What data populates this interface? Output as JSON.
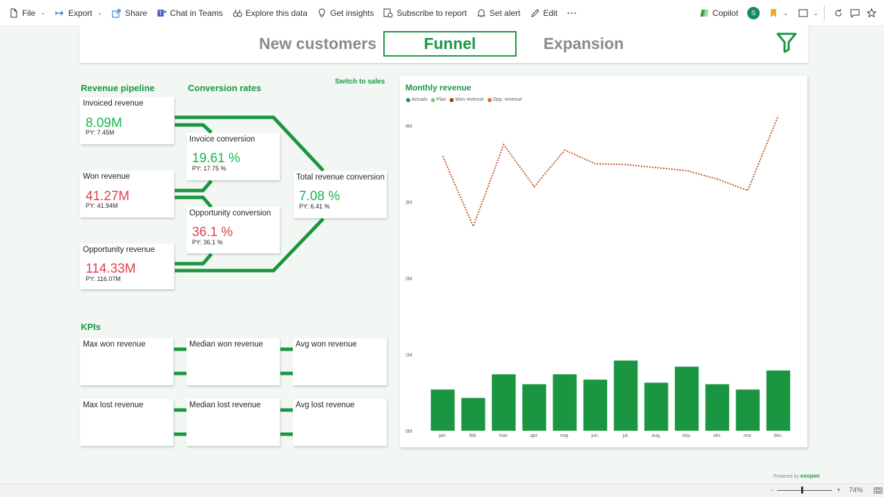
{
  "toolbar": {
    "file": "File",
    "export": "Export",
    "share": "Share",
    "chat": "Chat in Teams",
    "explore": "Explore this data",
    "insights": "Get insights",
    "subscribe": "Subscribe to report",
    "alert": "Set alert",
    "edit": "Edit",
    "more": "···",
    "copilot": "Copilot",
    "avatar": "S"
  },
  "tabs": {
    "new_customers": "New customers",
    "funnel": "Funnel",
    "expansion": "Expansion"
  },
  "sections": {
    "pipeline": "Revenue pipeline",
    "conversion": "Conversion rates",
    "switch": "Switch to sales",
    "kpis": "KPIs"
  },
  "pipeline": {
    "invoiced": {
      "label": "Invoiced revenue",
      "value": "8.09M",
      "py": "PY: 7.45M"
    },
    "won": {
      "label": "Won revenue",
      "value": "41.27M",
      "py": "PY: 41.94M"
    },
    "opportunity": {
      "label": "Opportunity revenue",
      "value": "114.33M",
      "py": "PY: 116.07M"
    }
  },
  "conversion": {
    "invoice": {
      "label": "Invoice conversion",
      "value": "19.61 %",
      "py": "PY: 17.75 %"
    },
    "opportunity": {
      "label": "Opportunity conversion",
      "value": "36.1 %",
      "py": "PY: 36.1 %"
    },
    "total": {
      "label": "Total revenue conversion",
      "value": "7.08 %",
      "py": "PY: 6.41 %"
    }
  },
  "kpis": {
    "max_won": "Max won revenue",
    "median_won": "Median won revenue",
    "avg_won": "Avg won revenue",
    "max_lost": "Max lost revenue",
    "median_lost": "Median lost revenue",
    "avg_lost": "Avg lost revenue"
  },
  "colors": {
    "accent": "#1a9641",
    "value_green": "#19b34a",
    "value_red": "#e0404a",
    "opp_line": "#c8501e"
  },
  "chart_data": {
    "type": "bar",
    "title": "Monthly revenue",
    "legend": [
      "Actuals",
      "Plan",
      "Won revenue",
      "Opp. revenue"
    ],
    "legend_colors": [
      "#1a9641",
      "#7fc97f",
      "#a83c14",
      "#e8692a"
    ],
    "categories": [
      "jan.",
      "feb.",
      "mar.",
      "apr.",
      "maj.",
      "jun.",
      "jul.",
      "aug.",
      "sep.",
      "okt.",
      "nov.",
      "dec."
    ],
    "series": [
      {
        "name": "Actuals",
        "type": "bar",
        "values": [
          0.54,
          0.43,
          0.74,
          0.61,
          0.74,
          0.67,
          0.92,
          0.63,
          0.84,
          0.61,
          0.54,
          0.79
        ]
      },
      {
        "name": "Opp. revenue",
        "type": "line",
        "values": [
          3.6,
          2.68,
          3.75,
          3.2,
          3.68,
          3.5,
          3.49,
          3.45,
          3.41,
          3.3,
          3.15,
          4.13
        ]
      }
    ],
    "yticks": [
      "0M",
      "1M",
      "2M",
      "3M",
      "4M"
    ],
    "ylim": [
      0,
      4.4
    ]
  },
  "footer": {
    "powered": "Powered by",
    "brand": "exopen",
    "zoom": "74%",
    "minus": "-",
    "plus": "+"
  }
}
